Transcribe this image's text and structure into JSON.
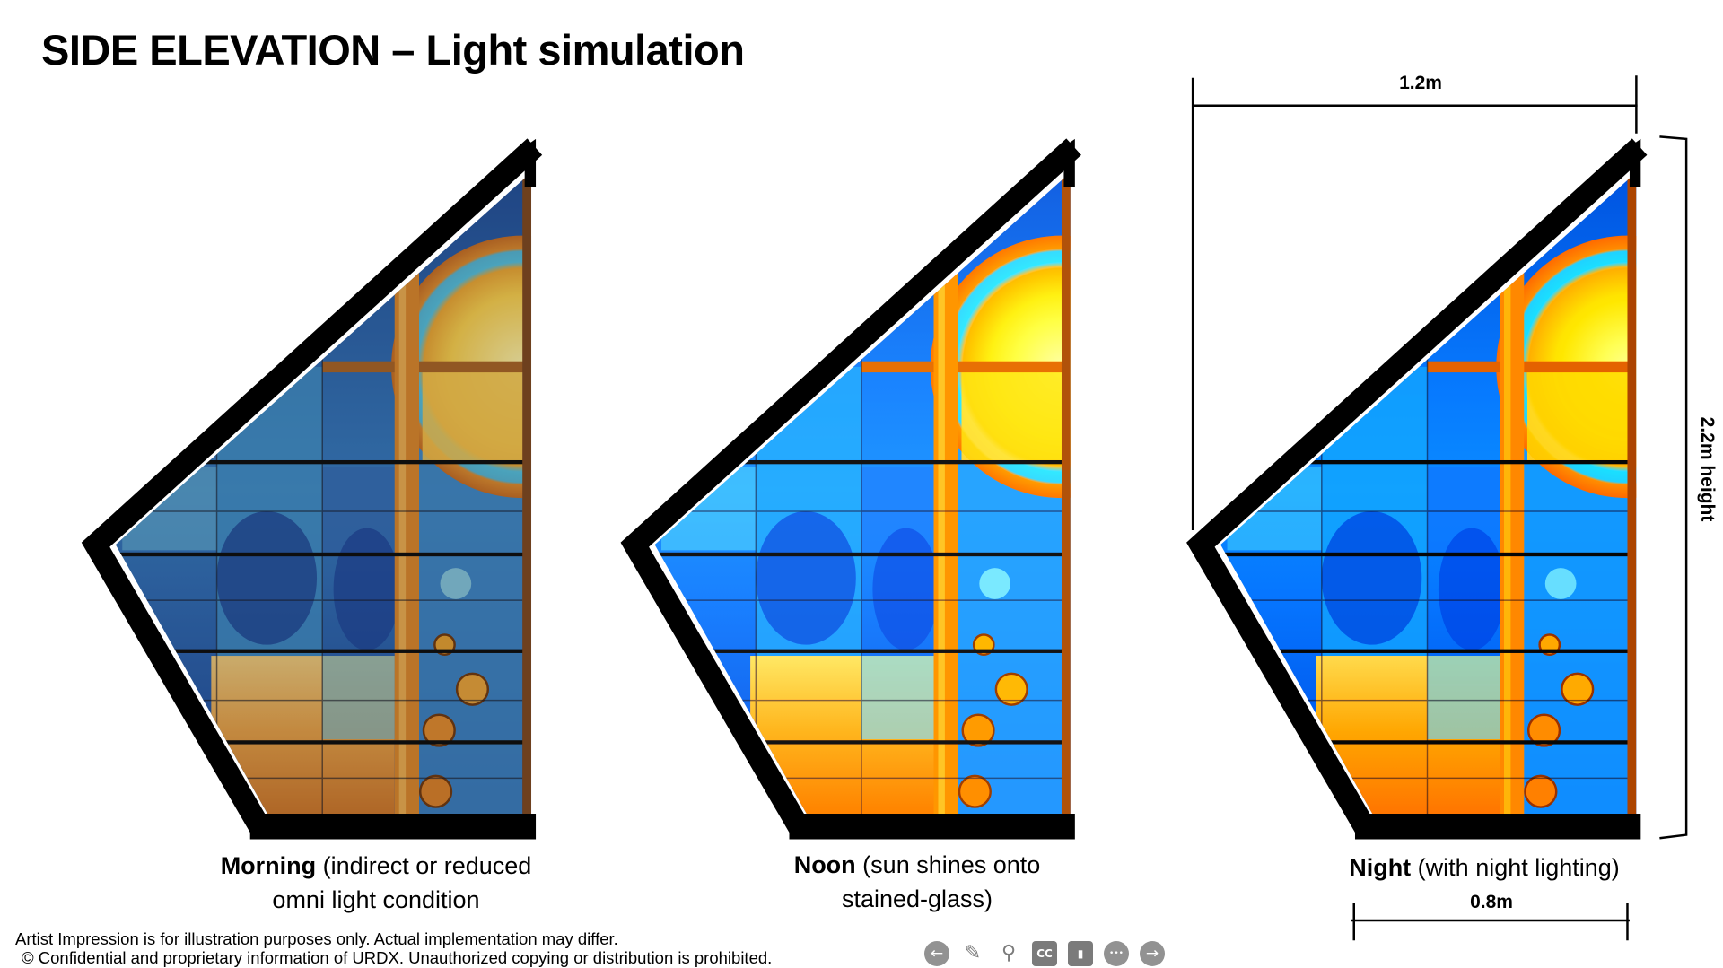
{
  "title": "SIDE ELEVATION – Light simulation",
  "panels": [
    {
      "bold": "Morning",
      "rest_line1": " (indirect or reduced",
      "line2": "omni light condition",
      "lighting": "morning"
    },
    {
      "bold": "Noon",
      "rest_line1": " (sun shines onto",
      "line2": "stained-glass)",
      "lighting": "noon"
    },
    {
      "bold": "Night",
      "rest_line1": " (with night lighting)",
      "line2": "",
      "lighting": "night"
    }
  ],
  "dimensions": {
    "top_width": "1.2m",
    "height": "2.2m height",
    "bottom_width": "0.8m"
  },
  "footer": {
    "disclaimer": "Artist Impression is for illustration purposes only. Actual implementation may differ.",
    "copyright": "© Confidential and proprietary information of URDX. Unauthorized copying or distribution is prohibited."
  },
  "player_controls": [
    "previous-icon",
    "pen-icon",
    "zoom-icon",
    "closed-captions-icon",
    "video-icon",
    "more-icon",
    "next-icon"
  ],
  "player_labels": {
    "cc": "CC",
    "more": "•••"
  },
  "colors": {
    "frame": "#000000",
    "glass_blue": "#1f5fb8",
    "glass_cyan": "#3fb4e6",
    "glass_orange": "#f0961e",
    "sun_yellow": "#ffd23c"
  }
}
